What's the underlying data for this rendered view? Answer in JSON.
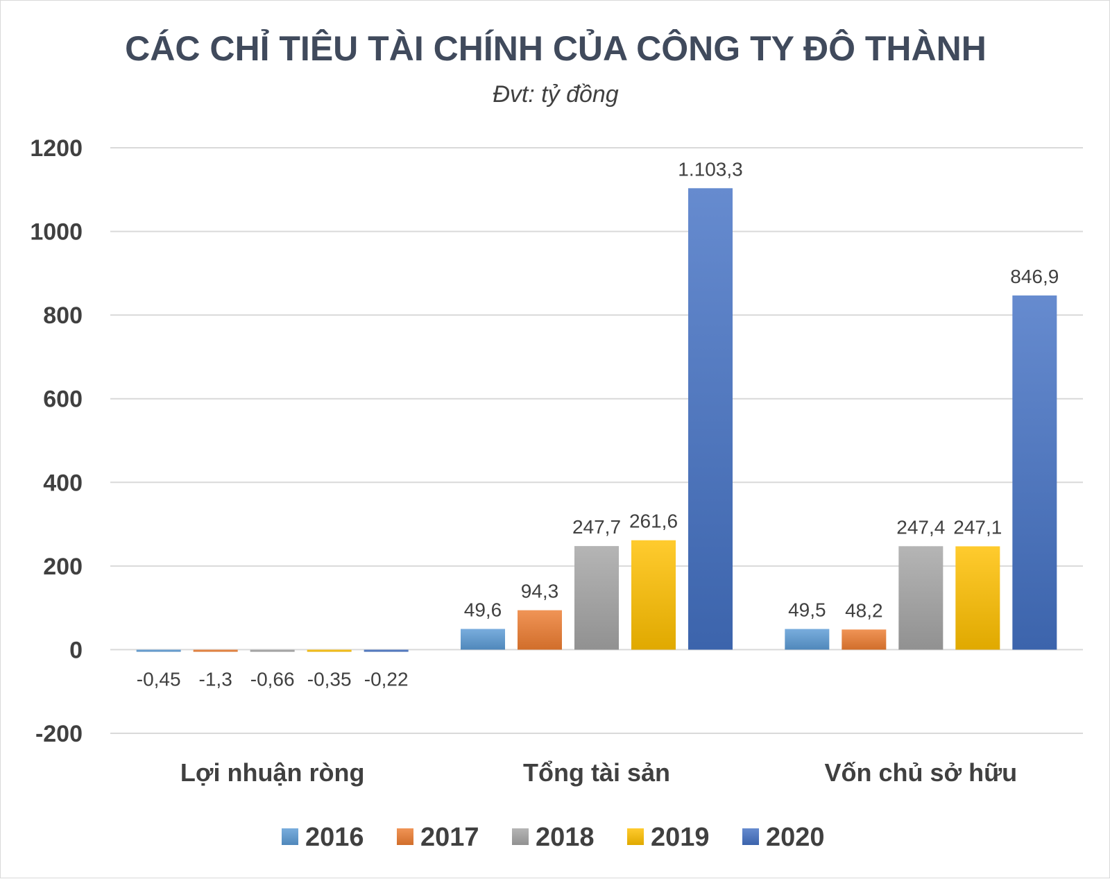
{
  "chart_data": {
    "type": "bar",
    "title": "CÁC CHỈ TIÊU TÀI CHÍNH CỦA CÔNG TY ĐÔ THÀNH",
    "subtitle": "Đvt: tỷ đồng",
    "categories": [
      "Lợi nhuận ròng",
      "Tổng tài sản",
      "Vốn chủ sở hữu"
    ],
    "ylim": [
      -200,
      1200
    ],
    "yticks": [
      1200,
      1000,
      800,
      600,
      400,
      200,
      0,
      -200
    ],
    "grid": true,
    "legend_position": "bottom",
    "series": [
      {
        "name": "2016",
        "color": "#5b9bd5",
        "values": [
          -0.45,
          49.6,
          49.5
        ],
        "labels": [
          "-0,45",
          "49,6",
          "49,5"
        ]
      },
      {
        "name": "2017",
        "color": "#ed7d31",
        "values": [
          -1.3,
          94.3,
          48.2
        ],
        "labels": [
          "-1,3",
          "94,3",
          "48,2"
        ]
      },
      {
        "name": "2018",
        "color": "#a5a5a5",
        "values": [
          -0.66,
          247.7,
          247.4
        ],
        "labels": [
          "-0,66",
          "247,7",
          "247,4"
        ]
      },
      {
        "name": "2019",
        "color": "#ffc000",
        "values": [
          -0.35,
          261.6,
          247.1
        ],
        "labels": [
          "-0,35",
          "261,6",
          "247,1"
        ]
      },
      {
        "name": "2020",
        "color": "#4472c4",
        "values": [
          -0.22,
          1103.3,
          846.9
        ],
        "labels": [
          "-0,22",
          "1.103,3",
          "846,9"
        ]
      }
    ]
  }
}
